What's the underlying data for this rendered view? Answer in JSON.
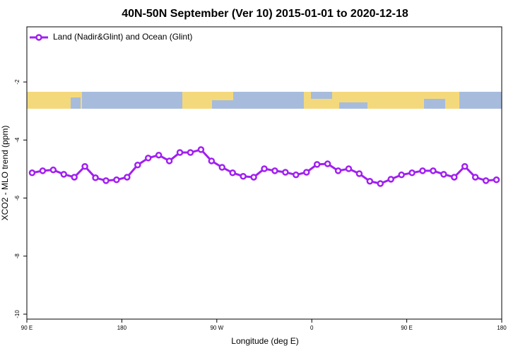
{
  "chart_data": {
    "type": "line",
    "title": "40N-50N September (Ver 10)   2015-01-01 to 2020-12-18",
    "x_label": "Longitude (deg E)",
    "y_label": "XCO2 - MLO trend (ppm)",
    "x": [
      95,
      105,
      115,
      125,
      135,
      145,
      155,
      165,
      175,
      185,
      195,
      205,
      215,
      225,
      235,
      245,
      255,
      265,
      275,
      285,
      295,
      305,
      315,
      325,
      335,
      345,
      355,
      365,
      375,
      385,
      395,
      405,
      415,
      425,
      435,
      445,
      455,
      465,
      475,
      485,
      495,
      505,
      515,
      525,
      535
    ],
    "series": [
      {
        "name": "Land (Nadir&Glint) and Ocean (Glint)",
        "color": "#a020f0",
        "values": [
          -5.13,
          -5.06,
          -5.03,
          -5.18,
          -5.28,
          -4.91,
          -5.3,
          -5.4,
          -5.37,
          -5.28,
          -4.86,
          -4.62,
          -4.52,
          -4.72,
          -4.43,
          -4.43,
          -4.33,
          -4.72,
          -4.94,
          -5.13,
          -5.25,
          -5.28,
          -4.99,
          -5.06,
          -5.11,
          -5.2,
          -5.11,
          -4.84,
          -4.82,
          -5.06,
          -4.99,
          -5.16,
          -5.42,
          -5.5,
          -5.35,
          -5.2,
          -5.13,
          -5.06,
          -5.06,
          -5.18,
          -5.28,
          -4.91,
          -5.28,
          -5.4,
          -5.37
        ]
      }
    ],
    "xlim": [
      90,
      540
    ],
    "xticks": [
      {
        "value": 90,
        "label": "90 E"
      },
      180,
      {
        "value": 270,
        "label": "90 W"
      },
      {
        "value": 360,
        "label": "0"
      },
      {
        "value": 450,
        "label": "90 E"
      },
      {
        "value": 540,
        "label": "180"
      }
    ],
    "ylim": [
      -10.17,
      -0.1
    ],
    "yticks": [
      -2,
      -4,
      -6,
      -8,
      -10
    ],
    "legend": "top-left"
  }
}
